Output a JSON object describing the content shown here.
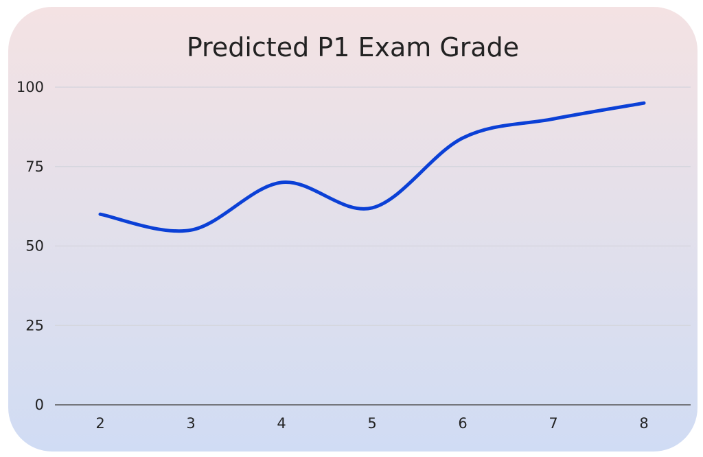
{
  "chart_data": {
    "type": "line",
    "title": "Predicted P1 Exam Grade",
    "xlabel": "",
    "ylabel": "",
    "x": [
      2,
      3,
      4,
      5,
      6,
      7,
      8
    ],
    "series": [
      {
        "values": [
          60,
          55,
          70,
          62,
          84,
          90,
          95
        ]
      }
    ],
    "ylim": [
      0,
      100
    ],
    "yticks": [
      0,
      25,
      50,
      75,
      100
    ],
    "grid": true,
    "legend": "none",
    "smooth": true,
    "colors": {
      "line": "#0b40d6",
      "grid": "#d4d4dc",
      "axis": "#555555",
      "text": "#222222"
    }
  }
}
